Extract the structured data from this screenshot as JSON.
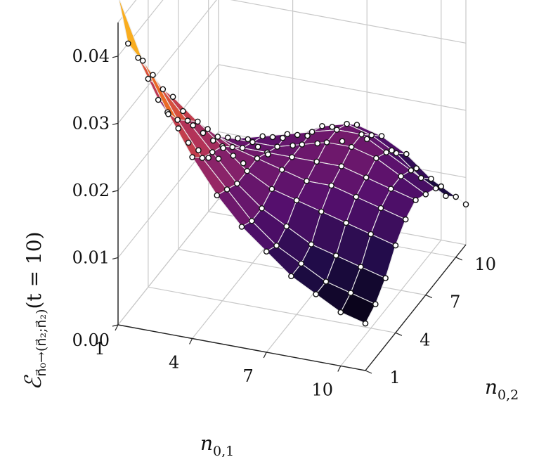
{
  "chart_data": {
    "type": "surface3d",
    "title": "",
    "xlabel": "n",
    "xlabel_sub": "0,1",
    "ylabel": "n",
    "ylabel_sub": "0,2",
    "zlabel_main": "ℰ",
    "zlabel_sub": "n⃗₀→(n⃗₂;n⃗₂)",
    "zlabel_suffix": "(t = 10)",
    "xticks": [
      "1",
      "4",
      "7",
      "10"
    ],
    "yticks": [
      "1",
      "4",
      "7",
      "10"
    ],
    "zticks": [
      "0.00",
      "0.01",
      "0.02",
      "0.03",
      "0.04"
    ],
    "x": [
      1,
      2,
      3,
      4,
      5,
      6,
      7,
      8,
      9,
      10,
      11
    ],
    "y": [
      1,
      2,
      3,
      4,
      5,
      6,
      7,
      8,
      9,
      10,
      11
    ],
    "zlim": [
      0,
      0.045
    ],
    "colormap": "inferno",
    "grid": true,
    "z_rows_by_y": [
      [
        0.049,
        0.04,
        0.033,
        0.027,
        0.022,
        0.018,
        0.015,
        0.012,
        0.01,
        0.008,
        0.007
      ],
      [
        0.04,
        0.036,
        0.03,
        0.025,
        0.021,
        0.017,
        0.014,
        0.012,
        0.01,
        0.009,
        0.008
      ],
      [
        0.036,
        0.032,
        0.028,
        0.024,
        0.02,
        0.017,
        0.015,
        0.013,
        0.012,
        0.011,
        0.01
      ],
      [
        0.031,
        0.029,
        0.026,
        0.023,
        0.02,
        0.018,
        0.017,
        0.016,
        0.015,
        0.014,
        0.013
      ],
      [
        0.026,
        0.025,
        0.023,
        0.021,
        0.02,
        0.019,
        0.018,
        0.018,
        0.017,
        0.016,
        0.015
      ],
      [
        0.022,
        0.021,
        0.02,
        0.019,
        0.019,
        0.019,
        0.019,
        0.019,
        0.018,
        0.017,
        0.016
      ],
      [
        0.018,
        0.018,
        0.018,
        0.018,
        0.018,
        0.019,
        0.02,
        0.02,
        0.019,
        0.017,
        0.015
      ],
      [
        0.014,
        0.015,
        0.016,
        0.017,
        0.018,
        0.019,
        0.02,
        0.02,
        0.018,
        0.016,
        0.014
      ],
      [
        0.011,
        0.012,
        0.014,
        0.015,
        0.016,
        0.018,
        0.019,
        0.018,
        0.016,
        0.013,
        0.011
      ],
      [
        0.008,
        0.009,
        0.011,
        0.013,
        0.014,
        0.016,
        0.017,
        0.016,
        0.014,
        0.011,
        0.009
      ],
      [
        0.006,
        0.006,
        0.008,
        0.01,
        0.011,
        0.012,
        0.013,
        0.012,
        0.01,
        0.008,
        0.006
      ]
    ]
  }
}
